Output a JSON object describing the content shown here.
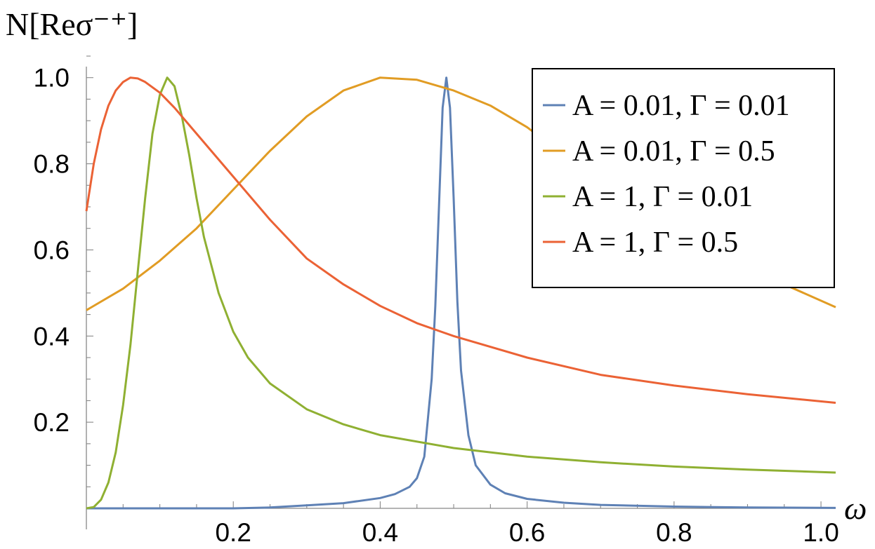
{
  "chart_data": {
    "type": "line",
    "ylabel": "N[Reσ⁻⁺]",
    "xlabel": "ω",
    "xlim": [
      0.0,
      1.02
    ],
    "ylim": [
      0.0,
      1.05
    ],
    "x_ticks": [
      0.2,
      0.4,
      0.6,
      0.8,
      1.0
    ],
    "x_tick_labels": [
      "0.2",
      "0.4",
      "0.6",
      "0.8",
      "1.0"
    ],
    "y_ticks": [
      0.2,
      0.4,
      0.6,
      0.8,
      1.0
    ],
    "y_tick_labels": [
      "0.2",
      "0.4",
      "0.6",
      "0.8",
      "1.0"
    ],
    "grid": false,
    "legend_position": "top-right",
    "series": [
      {
        "name": "A = 0.01, Γ = 0.01",
        "color": "#5E81B5",
        "x": [
          0.0,
          0.1,
          0.2,
          0.25,
          0.3,
          0.35,
          0.4,
          0.42,
          0.44,
          0.45,
          0.46,
          0.47,
          0.475,
          0.48,
          0.485,
          0.49,
          0.495,
          0.5,
          0.505,
          0.51,
          0.52,
          0.53,
          0.55,
          0.57,
          0.6,
          0.65,
          0.7,
          0.8,
          0.9,
          1.02
        ],
        "y": [
          0.0,
          0.0,
          0.0,
          0.002,
          0.007,
          0.012,
          0.024,
          0.033,
          0.05,
          0.07,
          0.12,
          0.3,
          0.47,
          0.7,
          0.93,
          1.0,
          0.93,
          0.72,
          0.48,
          0.32,
          0.17,
          0.1,
          0.055,
          0.035,
          0.022,
          0.013,
          0.008,
          0.004,
          0.002,
          0.001
        ]
      },
      {
        "name": "A = 0.01, Γ = 0.5",
        "color": "#E19C24",
        "x": [
          0.0,
          0.05,
          0.1,
          0.15,
          0.2,
          0.25,
          0.3,
          0.35,
          0.4,
          0.45,
          0.5,
          0.55,
          0.6,
          0.65,
          0.7,
          0.75,
          0.8,
          0.85,
          0.9,
          0.95,
          1.02
        ],
        "y": [
          0.46,
          0.51,
          0.575,
          0.65,
          0.74,
          0.83,
          0.91,
          0.97,
          1.0,
          0.995,
          0.97,
          0.935,
          0.885,
          0.82,
          0.76,
          0.7,
          0.65,
          0.6,
          0.56,
          0.52,
          0.467
        ]
      },
      {
        "name": "A = 1, Γ = 0.01",
        "color": "#8FB032",
        "x": [
          0.0,
          0.01,
          0.02,
          0.03,
          0.04,
          0.05,
          0.06,
          0.07,
          0.08,
          0.09,
          0.1,
          0.11,
          0.12,
          0.13,
          0.14,
          0.15,
          0.16,
          0.18,
          0.2,
          0.22,
          0.25,
          0.3,
          0.35,
          0.4,
          0.5,
          0.6,
          0.7,
          0.8,
          0.9,
          1.02
        ],
        "y": [
          0.0,
          0.003,
          0.02,
          0.06,
          0.13,
          0.24,
          0.38,
          0.55,
          0.72,
          0.87,
          0.96,
          1.0,
          0.98,
          0.91,
          0.82,
          0.72,
          0.63,
          0.5,
          0.41,
          0.35,
          0.29,
          0.23,
          0.195,
          0.17,
          0.14,
          0.12,
          0.107,
          0.097,
          0.09,
          0.083
        ]
      },
      {
        "name": "A = 1, Γ = 0.5",
        "color": "#EB6235",
        "x": [
          0.0,
          0.01,
          0.02,
          0.03,
          0.04,
          0.05,
          0.06,
          0.07,
          0.08,
          0.1,
          0.12,
          0.15,
          0.2,
          0.25,
          0.3,
          0.35,
          0.4,
          0.45,
          0.5,
          0.6,
          0.7,
          0.8,
          0.9,
          1.02
        ],
        "y": [
          0.69,
          0.8,
          0.88,
          0.935,
          0.97,
          0.99,
          1.0,
          0.998,
          0.99,
          0.965,
          0.93,
          0.87,
          0.77,
          0.67,
          0.58,
          0.52,
          0.47,
          0.43,
          0.4,
          0.35,
          0.31,
          0.285,
          0.265,
          0.245
        ]
      }
    ]
  }
}
